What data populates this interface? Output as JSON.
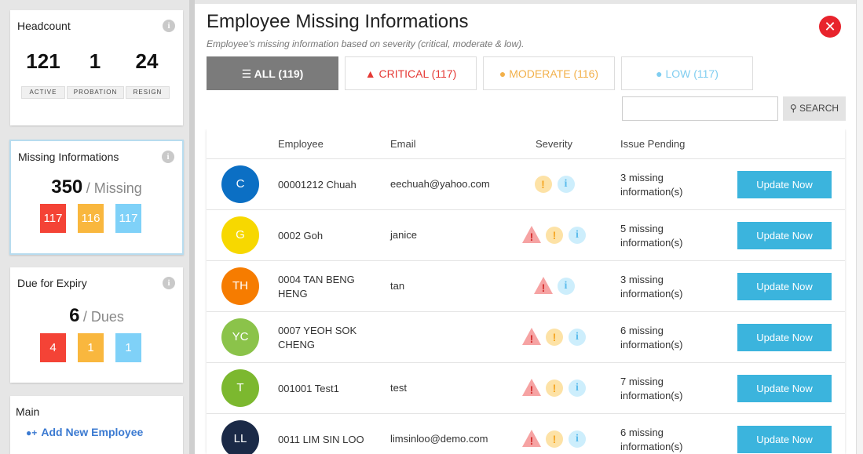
{
  "sidebar": {
    "headcount": {
      "title": "Headcount",
      "values": [
        "121",
        "1",
        "24"
      ],
      "labels": [
        "ACTIVE",
        "PROBATION",
        "RESIGN"
      ]
    },
    "missing": {
      "title": "Missing Informations",
      "total": "350",
      "unit": "/ Missing",
      "counts": [
        "117",
        "116",
        "117"
      ]
    },
    "expiry": {
      "title": "Due for Expiry",
      "total": "6",
      "unit": "/ Dues",
      "counts": [
        "4",
        "1",
        "1"
      ]
    },
    "main": {
      "title": "Main",
      "link": "Add New Employee"
    }
  },
  "modal": {
    "title": "Employee Missing Informations",
    "subtitle": "Employee's missing information based on severity (critical, moderate & low).",
    "tabs": [
      "ALL (119)",
      "CRITICAL (117)",
      "MODERATE (116)",
      "LOW (117)"
    ],
    "search_button": "SEARCH",
    "table": {
      "headers": [
        "Employee",
        "Email",
        "Severity",
        "Issue Pending"
      ],
      "rows": [
        {
          "initials": "C",
          "avatar_color": "#0b6fc4",
          "employee": "00001212 Chuah",
          "email": "eechuah@yahoo.com",
          "severity": {
            "critical": false,
            "moderate": true,
            "low": true
          },
          "issue": "3 missing information(s)",
          "action": "Update Now"
        },
        {
          "initials": "G",
          "avatar_color": "#f7d800",
          "employee": "0002 Goh",
          "email": "janice",
          "severity": {
            "critical": true,
            "moderate": true,
            "low": true
          },
          "issue": "5 missing information(s)",
          "action": "Update Now"
        },
        {
          "initials": "TH",
          "avatar_color": "#f67c00",
          "employee": "0004 TAN BENG HENG",
          "email": "tan",
          "severity": {
            "critical": true,
            "moderate": false,
            "low": true
          },
          "issue": "3 missing information(s)",
          "action": "Update Now"
        },
        {
          "initials": "YC",
          "avatar_color": "#8bc34a",
          "employee": "0007 YEOH SOK CHENG",
          "severity": {
            "critical": true,
            "moderate": true,
            "low": true
          },
          "issue": "6 missing information(s)",
          "action": "Update Now"
        },
        {
          "initials": "T",
          "avatar_color": "#7cb82f",
          "employee": "001001 Test1",
          "email": "test",
          "severity": {
            "critical": true,
            "moderate": true,
            "low": true
          },
          "issue": "7 missing information(s)",
          "action": "Update Now"
        },
        {
          "initials": "LL",
          "avatar_color": "#1b2a47",
          "employee": "0011 LIM SIN LOO",
          "email": "limsinloo@demo.com",
          "severity": {
            "critical": true,
            "moderate": true,
            "low": true
          },
          "issue": "6 missing information(s)",
          "action": "Update Now"
        }
      ]
    }
  }
}
